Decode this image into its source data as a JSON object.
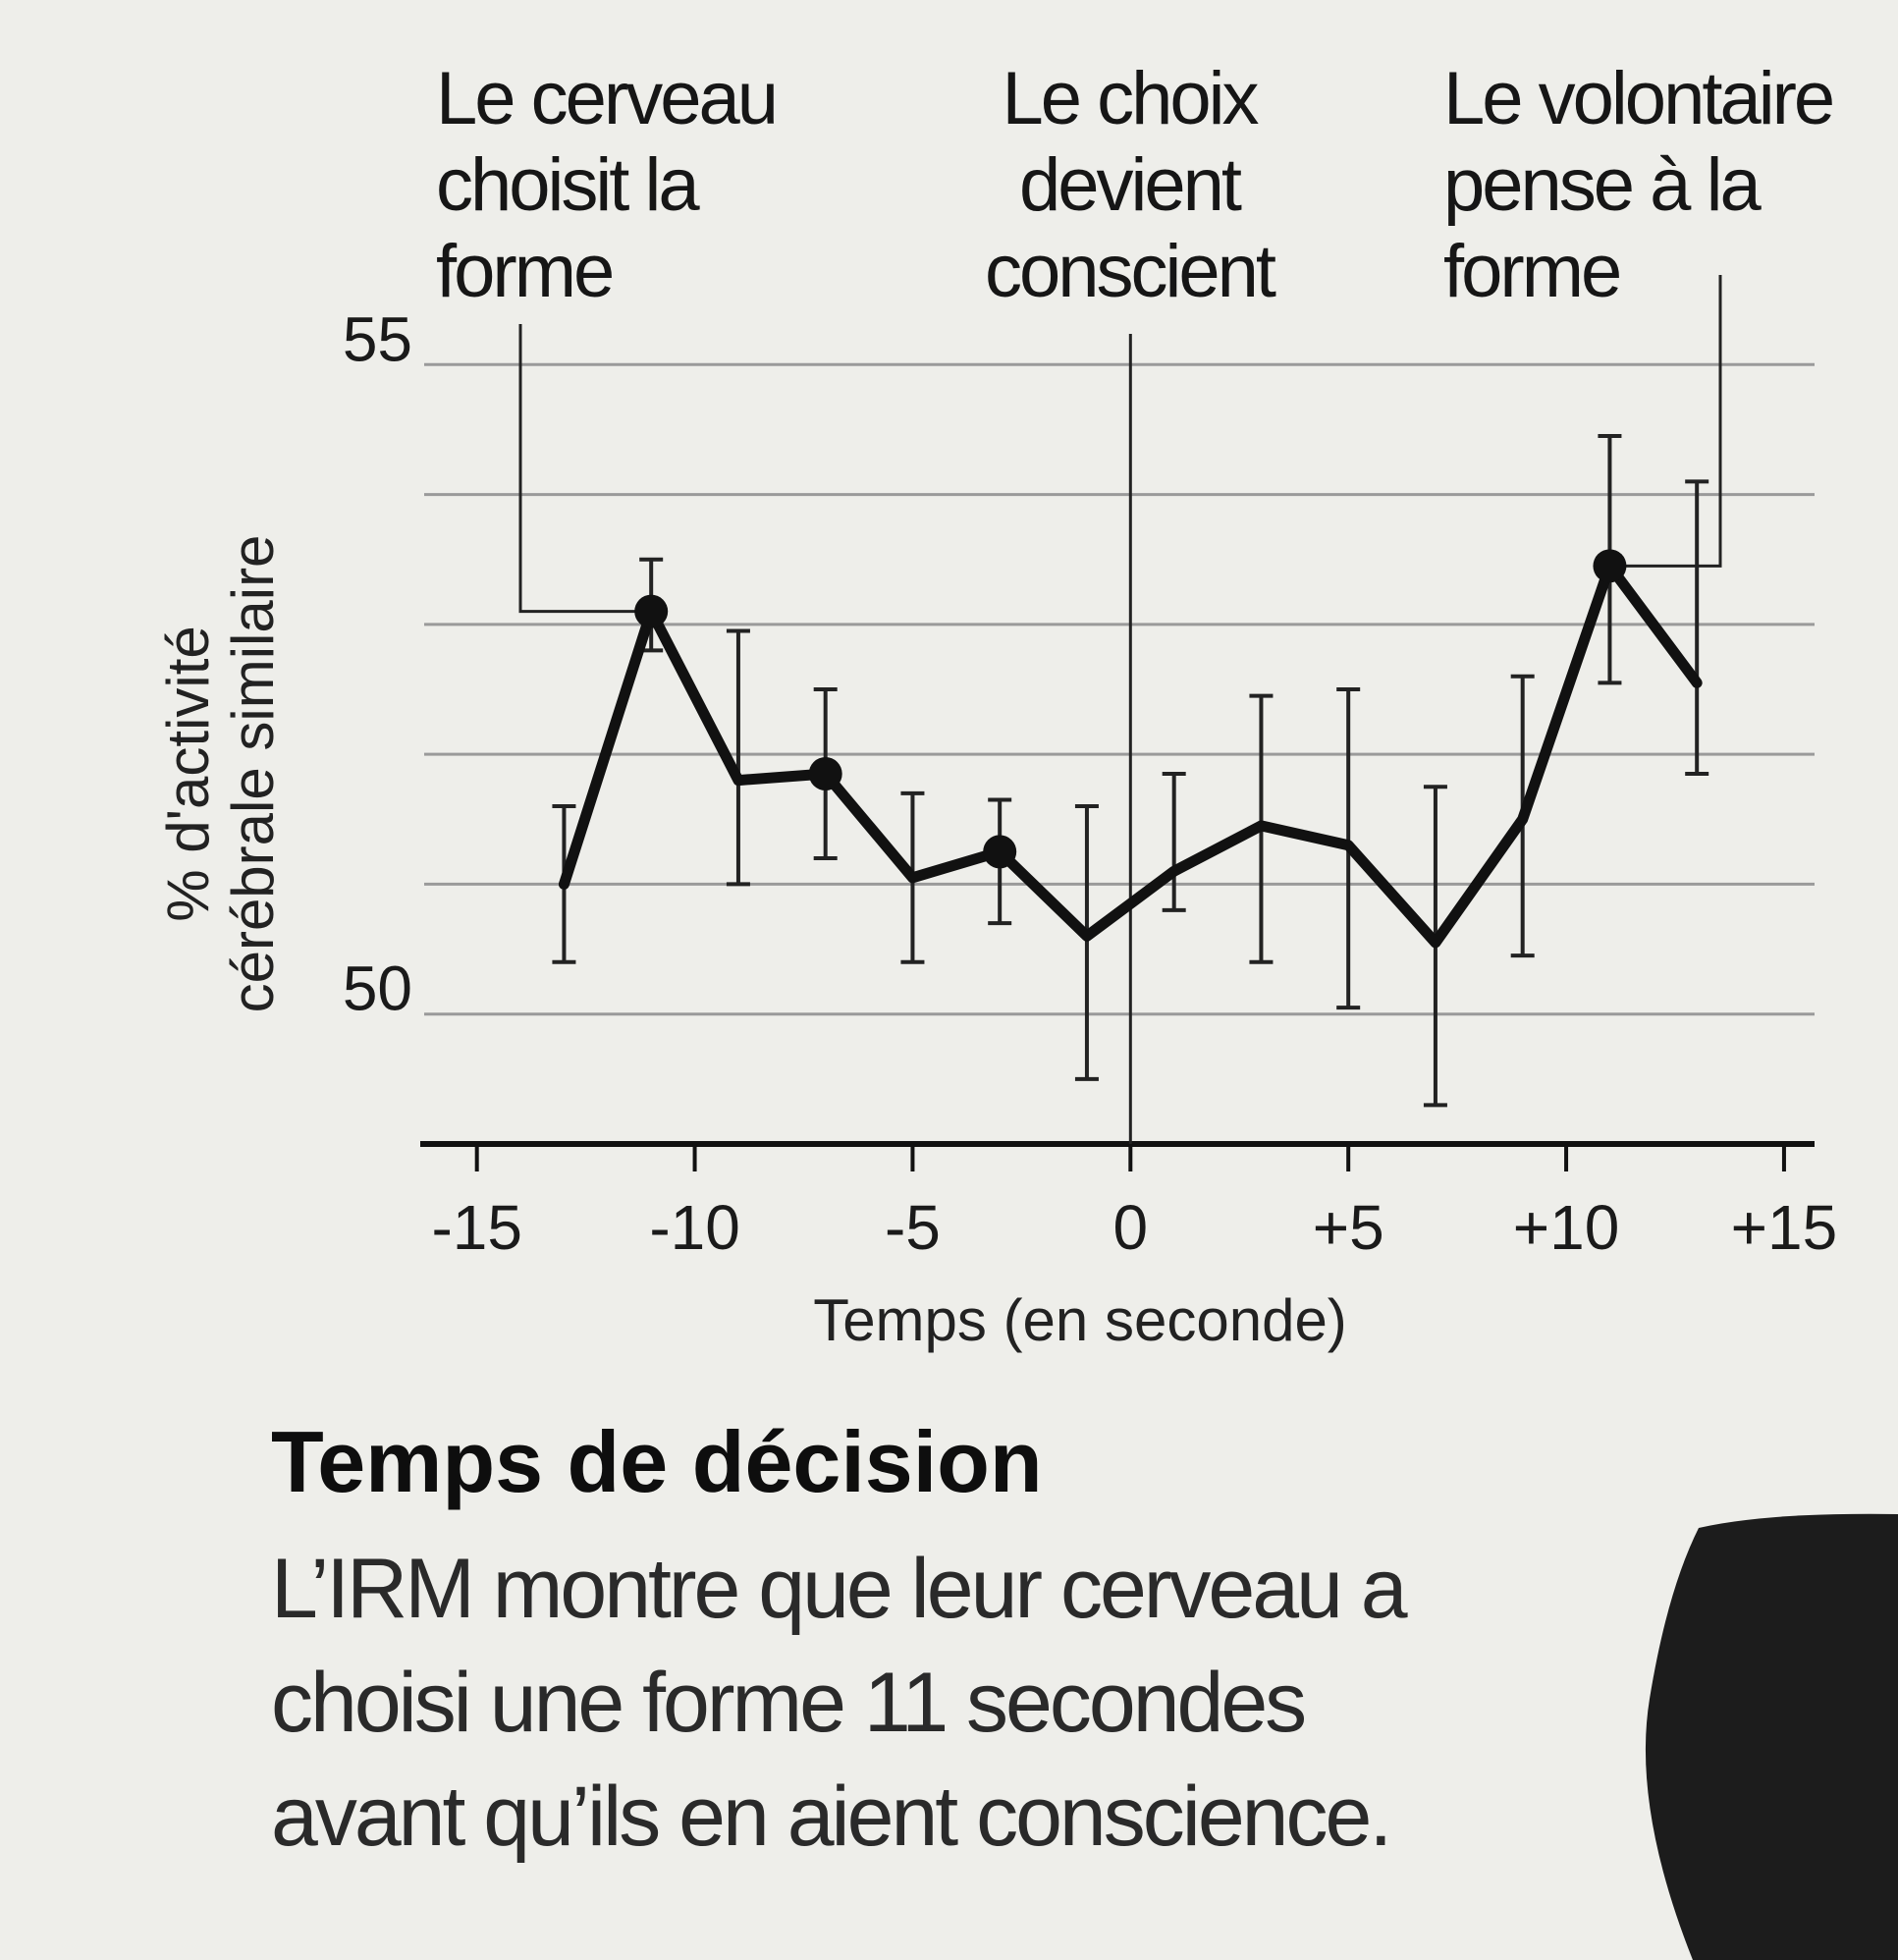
{
  "chart_data": {
    "type": "line",
    "title": "Temps de décision",
    "xlabel": "Temps (en seconde)",
    "ylabel": [
      "% d'activité",
      "cérébrale similaire"
    ],
    "x_ticks": [
      "-15",
      "-10",
      "-5",
      "0",
      "+5",
      "+10",
      "+15"
    ],
    "x_tick_values": [
      -15,
      -10,
      -5,
      0,
      5,
      10,
      15
    ],
    "y_ticks": [
      "55",
      "50"
    ],
    "y_tick_values": [
      55,
      50
    ],
    "xlim": [
      -16.3,
      15.7
    ],
    "ylim": [
      49,
      56
    ],
    "grid": true,
    "series": [
      {
        "name": "activité cérébrale similaire",
        "x": [
          -13,
          -11,
          -9,
          -7,
          -5,
          -3,
          -1,
          1,
          3,
          5,
          7,
          9,
          11,
          13
        ],
        "y": [
          51.0,
          53.1,
          51.8,
          51.85,
          51.05,
          51.25,
          50.6,
          51.1,
          51.45,
          51.3,
          50.55,
          51.5,
          53.45,
          52.55
        ],
        "err_low": [
          50.4,
          52.8,
          51.0,
          51.2,
          50.4,
          50.7,
          49.5,
          50.8,
          50.4,
          50.05,
          49.3,
          50.45,
          52.55,
          51.85
        ],
        "err_high": [
          51.6,
          53.5,
          52.95,
          52.5,
          51.7,
          51.65,
          51.6,
          51.85,
          52.45,
          52.5,
          51.75,
          52.6,
          54.45,
          54.1
        ],
        "markers": [
          false,
          true,
          false,
          true,
          false,
          true,
          false,
          false,
          false,
          false,
          false,
          false,
          true,
          false
        ]
      }
    ],
    "annotations": [
      {
        "lines": [
          "Le cerveau",
          "choisit la",
          "forme"
        ],
        "x": -11
      },
      {
        "lines": [
          "Le choix",
          "devient",
          "conscient"
        ],
        "x": 0
      },
      {
        "lines": [
          "Le volontaire",
          "pense à la",
          "forme"
        ],
        "x": 11
      }
    ]
  },
  "caption": {
    "title": "Temps de décision",
    "body_lines": [
      "L’IRM montre que leur cerveau a",
      "choisi une forme 11 secondes",
      "avant qu’ils en aient conscience."
    ]
  },
  "colors": {
    "background": "#eeeeea",
    "line": "#111111",
    "grid": "#9a9a9a",
    "corner_shape": "#1c1c1c"
  }
}
